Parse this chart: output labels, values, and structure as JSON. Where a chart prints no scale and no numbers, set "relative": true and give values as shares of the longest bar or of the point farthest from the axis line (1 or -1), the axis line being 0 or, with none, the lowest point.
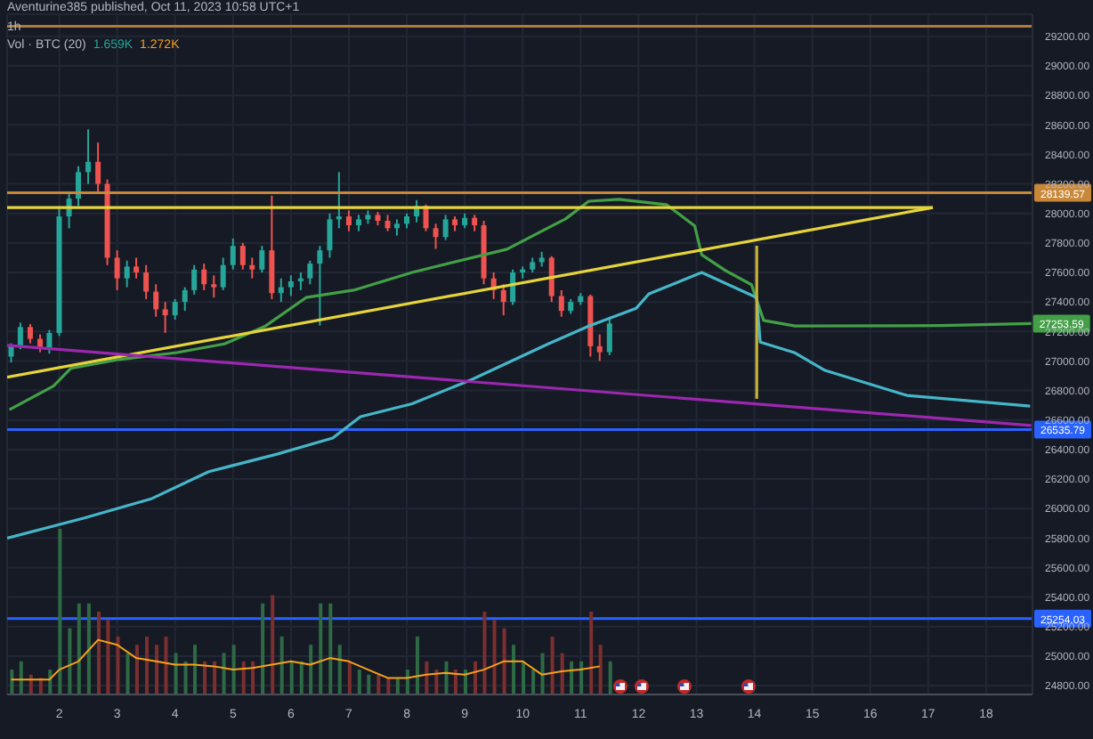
{
  "chart_data": [
    {
      "type": "candlestick",
      "title": "1h",
      "annotations": [
        "Aventurine385 published, Oct 11, 2023 10:58 UTC+1",
        {
          "text": "27253.59",
          "x": 18.78,
          "y": 27253.59
        }
      ],
      "xlim": [
        1.1,
        18.8
      ],
      "xticks": [
        2,
        3,
        4,
        5,
        6,
        7,
        8,
        9,
        10,
        11,
        12,
        13,
        14,
        15,
        16,
        17,
        18
      ],
      "ylim": [
        24740,
        29350
      ],
      "yticks": [
        {
          "value": 24800,
          "label": "24800.00"
        },
        {
          "value": 25000,
          "label": "25000.00"
        },
        {
          "value": 25200,
          "label": "25200.00"
        },
        {
          "value": 25400,
          "label": "25400.00"
        },
        {
          "value": 25600,
          "label": "25600.00"
        },
        {
          "value": 25800,
          "label": "25800.00"
        },
        {
          "value": 26000,
          "label": "26000.00"
        },
        {
          "value": 26200,
          "label": "26200.00"
        },
        {
          "value": 26400,
          "label": "26400.00"
        },
        {
          "value": 26600,
          "label": "26600.00"
        },
        {
          "value": 26800,
          "label": "26800.00"
        },
        {
          "value": 27000,
          "label": "27000.00"
        },
        {
          "value": 27200,
          "label": "27200.00"
        },
        {
          "value": 27400,
          "label": "27400.00"
        },
        {
          "value": 27600,
          "label": "27600.00"
        },
        {
          "value": 27800,
          "label": "27800.00"
        },
        {
          "value": 28000,
          "label": "28000.00"
        },
        {
          "value": 28200,
          "label": "28200.00"
        },
        {
          "value": 28400,
          "label": "28400.00"
        },
        {
          "value": 28600,
          "label": "28600.00"
        },
        {
          "value": 28800,
          "label": "28800.00"
        },
        {
          "value": 29000,
          "label": "29000.00"
        },
        {
          "value": 29200,
          "label": "29200.00"
        }
      ],
      "grid": true,
      "ref_lines": [
        {
          "axis": "y",
          "value": 29268,
          "color": "#b07a3b"
        },
        {
          "axis": "y",
          "value": 28139.57,
          "label": "28139.57",
          "color": "#c8883a"
        },
        {
          "axis": "y",
          "value": 26535.79,
          "label": "26535.79",
          "color": "#2962ff"
        },
        {
          "axis": "y",
          "value": 25254.03,
          "label": "25254.03",
          "color": "#2962ff"
        }
      ],
      "series": [
        {
          "type": "line",
          "color": "#43a047",
          "x": [
            1.14,
            1.9,
            2.2,
            3.03,
            4.03,
            4.85,
            5.56,
            6.26,
            7.08,
            8.09,
            9.73,
            10.44,
            10.74,
            11.14,
            11.66,
            12.48,
            12.97,
            13.09,
            13.5,
            13.95,
            14.16,
            14.7,
            17.24,
            18.78
          ],
          "values": [
            26670,
            26830,
            26950,
            27010,
            27057,
            27116,
            27237,
            27430,
            27480,
            27600,
            27758,
            27903,
            27963,
            28083,
            28096,
            28060,
            27915,
            27720,
            27613,
            27517,
            27275,
            27237,
            27240,
            27253.59
          ]
        },
        {
          "type": "line",
          "color": "#45b6c8",
          "x": [
            1.1,
            2.42,
            3.6,
            4.58,
            5.77,
            6.72,
            7.2,
            8.09,
            9.13,
            10.44,
            11.14,
            11.96,
            12.18,
            13.09,
            14.04,
            14.1,
            14.7,
            15.22,
            16.63,
            18.76
          ],
          "values": [
            25800,
            25935,
            26068,
            26250,
            26370,
            26478,
            26623,
            26710,
            26876,
            27116,
            27237,
            27358,
            27455,
            27600,
            27430,
            27128,
            27055,
            26936,
            26767,
            26694
          ]
        },
        {
          "type": "line",
          "color": "#e6d53a",
          "x": [
            1.1,
            17.08
          ],
          "values": [
            26890,
            28040
          ]
        },
        {
          "type": "line",
          "color": "#e6d53a",
          "x": [
            1.1,
            17.08
          ],
          "values": [
            28040,
            28040
          ]
        },
        {
          "type": "line",
          "color": "#9c27b0",
          "x": [
            1.1,
            18.78
          ],
          "values": [
            27106,
            26563
          ]
        },
        {
          "type": "line",
          "color": "#c9b43a",
          "x": [
            14.04,
            14.04
          ],
          "values": [
            26744,
            27781
          ]
        },
        {
          "type": "candlestick",
          "x": [
            1.17,
            1.33,
            1.5,
            1.67,
            1.83,
            2.0,
            2.17,
            2.33,
            2.5,
            2.67,
            2.83,
            3.0,
            3.17,
            3.33,
            3.5,
            3.67,
            3.83,
            4.0,
            4.17,
            4.33,
            4.5,
            4.67,
            4.83,
            5.0,
            5.17,
            5.33,
            5.5,
            5.67,
            5.83,
            6.0,
            6.17,
            6.33,
            6.5,
            6.67,
            6.83,
            7.0,
            7.17,
            7.33,
            7.5,
            7.67,
            7.83,
            8.0,
            8.17,
            8.33,
            8.5,
            8.67,
            8.83,
            9.0,
            9.17,
            9.33,
            9.5,
            9.67,
            9.83,
            10.0,
            10.17,
            10.33,
            10.5,
            10.67,
            10.83,
            11.0,
            11.17,
            11.33,
            11.5
          ],
          "ohlc": [
            [
              27030,
              27120,
              26990,
              27100
            ],
            [
              27100,
              27260,
              27080,
              27230
            ],
            [
              27230,
              27250,
              27120,
              27150
            ],
            [
              27150,
              27180,
              27060,
              27090
            ],
            [
              27090,
              27210,
              27050,
              27190
            ],
            [
              27190,
              28050,
              27170,
              27980
            ],
            [
              27980,
              28150,
              27900,
              28100
            ],
            [
              28100,
              28320,
              28050,
              28280
            ],
            [
              28280,
              28570,
              28200,
              28350
            ],
            [
              28350,
              28480,
              28150,
              28200
            ],
            [
              28200,
              28230,
              27650,
              27700
            ],
            [
              27700,
              27750,
              27480,
              27560
            ],
            [
              27560,
              27680,
              27500,
              27640
            ],
            [
              27640,
              27700,
              27560,
              27600
            ],
            [
              27600,
              27650,
              27420,
              27470
            ],
            [
              27470,
              27520,
              27300,
              27350
            ],
            [
              27350,
              27400,
              27190,
              27310
            ],
            [
              27310,
              27420,
              27280,
              27400
            ],
            [
              27400,
              27500,
              27340,
              27480
            ],
            [
              27480,
              27650,
              27450,
              27620
            ],
            [
              27620,
              27660,
              27480,
              27520
            ],
            [
              27520,
              27580,
              27430,
              27500
            ],
            [
              27500,
              27700,
              27480,
              27650
            ],
            [
              27650,
              27830,
              27620,
              27780
            ],
            [
              27780,
              27800,
              27620,
              27650
            ],
            [
              27650,
              27700,
              27560,
              27620
            ],
            [
              27620,
              27780,
              27600,
              27750
            ],
            [
              27750,
              28120,
              27420,
              27460
            ],
            [
              27460,
              27560,
              27400,
              27500
            ],
            [
              27500,
              27580,
              27440,
              27540
            ],
            [
              27540,
              27600,
              27480,
              27560
            ],
            [
              27560,
              27680,
              27520,
              27660
            ],
            [
              27660,
              27780,
              27240,
              27750
            ],
            [
              27750,
              28000,
              27700,
              27960
            ],
            [
              27960,
              28280,
              27900,
              27980
            ],
            [
              27980,
              28020,
              27880,
              27920
            ],
            [
              27920,
              27990,
              27880,
              27960
            ],
            [
              27960,
              28020,
              27930,
              27990
            ],
            [
              27990,
              28010,
              27920,
              27950
            ],
            [
              27950,
              27990,
              27880,
              27900
            ],
            [
              27900,
              27960,
              27850,
              27930
            ],
            [
              27930,
              28000,
              27900,
              27980
            ],
            [
              27980,
              28090,
              27940,
              28050
            ],
            [
              28050,
              28060,
              27880,
              27900
            ],
            [
              27900,
              27930,
              27760,
              27840
            ],
            [
              27840,
              27990,
              27820,
              27960
            ],
            [
              27960,
              27980,
              27880,
              27920
            ],
            [
              27920,
              28000,
              27900,
              27970
            ],
            [
              27970,
              27990,
              27880,
              27920
            ],
            [
              27920,
              27950,
              27520,
              27560
            ],
            [
              27560,
              27600,
              27420,
              27480
            ],
            [
              27480,
              27520,
              27310,
              27400
            ],
            [
              27400,
              27620,
              27380,
              27600
            ],
            [
              27600,
              27640,
              27560,
              27620
            ],
            [
              27620,
              27700,
              27600,
              27670
            ],
            [
              27670,
              27740,
              27640,
              27700
            ],
            [
              27700,
              27710,
              27400,
              27440
            ],
            [
              27440,
              27480,
              27300,
              27340
            ],
            [
              27340,
              27420,
              27320,
              27400
            ],
            [
              27400,
              27460,
              27380,
              27440
            ],
            [
              27440,
              27450,
              27030,
              27100
            ],
            [
              27100,
              27180,
              27000,
              27060
            ],
            [
              27060,
              27300,
              27040,
              27254
            ]
          ],
          "colors": [
            "#26a69a",
            "#26a69a",
            "#ef5350",
            "#ef5350",
            "#26a69a",
            "#26a69a",
            "#26a69a",
            "#26a69a",
            "#26a69a",
            "#ef5350",
            "#ef5350",
            "#ef5350",
            "#26a69a",
            "#ef5350",
            "#ef5350",
            "#ef5350",
            "#ef5350",
            "#26a69a",
            "#26a69a",
            "#26a69a",
            "#ef5350",
            "#ef5350",
            "#26a69a",
            "#26a69a",
            "#ef5350",
            "#ef5350",
            "#26a69a",
            "#ef5350",
            "#26a69a",
            "#26a69a",
            "#26a69a",
            "#26a69a",
            "#26a69a",
            "#26a69a",
            "#26a69a",
            "#ef5350",
            "#26a69a",
            "#26a69a",
            "#ef5350",
            "#ef5350",
            "#26a69a",
            "#26a69a",
            "#26a69a",
            "#ef5350",
            "#ef5350",
            "#26a69a",
            "#ef5350",
            "#26a69a",
            "#ef5350",
            "#ef5350",
            "#ef5350",
            "#ef5350",
            "#26a69a",
            "#26a69a",
            "#26a69a",
            "#26a69a",
            "#ef5350",
            "#ef5350",
            "#26a69a",
            "#26a69a",
            "#ef5350",
            "#ef5350",
            "#26a69a"
          ]
        }
      ]
    },
    {
      "type": "bar",
      "title": "Vol · BTC (20)",
      "annotations": [
        "1.659K",
        "1.272K"
      ],
      "relative": true,
      "xlim": [
        1.1,
        18.8
      ],
      "series": [
        {
          "type": "bar",
          "x": [
            1.17,
            1.33,
            1.5,
            1.67,
            1.83,
            2.0,
            2.17,
            2.33,
            2.5,
            2.67,
            2.83,
            3.0,
            3.17,
            3.33,
            3.5,
            3.67,
            3.83,
            4.0,
            4.17,
            4.33,
            4.5,
            4.67,
            4.83,
            5.0,
            5.17,
            5.33,
            5.5,
            5.67,
            5.83,
            6.0,
            6.17,
            6.33,
            6.5,
            6.67,
            6.83,
            7.0,
            7.17,
            7.33,
            7.5,
            7.67,
            7.83,
            8.0,
            8.17,
            8.33,
            8.5,
            8.67,
            8.83,
            9.0,
            9.17,
            9.33,
            9.5,
            9.67,
            9.83,
            10.0,
            10.17,
            10.33,
            10.5,
            10.67,
            10.83,
            11.0,
            11.17,
            11.33,
            11.5
          ],
          "values": [
            0.15,
            0.2,
            0.12,
            0.1,
            0.15,
            1.0,
            0.4,
            0.55,
            0.55,
            0.5,
            0.45,
            0.35,
            0.25,
            0.3,
            0.35,
            0.3,
            0.35,
            0.25,
            0.2,
            0.3,
            0.2,
            0.2,
            0.25,
            0.3,
            0.2,
            0.2,
            0.55,
            0.6,
            0.35,
            0.2,
            0.2,
            0.3,
            0.55,
            0.55,
            0.3,
            0.2,
            0.15,
            0.12,
            0.12,
            0.1,
            0.1,
            0.15,
            0.35,
            0.2,
            0.15,
            0.2,
            0.15,
            0.15,
            0.2,
            0.5,
            0.45,
            0.4,
            0.3,
            0.2,
            0.15,
            0.25,
            0.35,
            0.25,
            0.2,
            0.2,
            0.5,
            0.3,
            0.2
          ],
          "colors": [
            "#2e6b45",
            "#2e6b45",
            "#7c2f2f",
            "#7c2f2f",
            "#2e6b45",
            "#2e6b45",
            "#2e6b45",
            "#2e6b45",
            "#2e6b45",
            "#7c2f2f",
            "#7c2f2f",
            "#7c2f2f",
            "#2e6b45",
            "#7c2f2f",
            "#7c2f2f",
            "#7c2f2f",
            "#7c2f2f",
            "#2e6b45",
            "#2e6b45",
            "#2e6b45",
            "#7c2f2f",
            "#7c2f2f",
            "#2e6b45",
            "#2e6b45",
            "#7c2f2f",
            "#7c2f2f",
            "#2e6b45",
            "#7c2f2f",
            "#2e6b45",
            "#2e6b45",
            "#2e6b45",
            "#2e6b45",
            "#2e6b45",
            "#2e6b45",
            "#2e6b45",
            "#7c2f2f",
            "#2e6b45",
            "#2e6b45",
            "#7c2f2f",
            "#7c2f2f",
            "#2e6b45",
            "#2e6b45",
            "#2e6b45",
            "#7c2f2f",
            "#7c2f2f",
            "#2e6b45",
            "#7c2f2f",
            "#2e6b45",
            "#7c2f2f",
            "#7c2f2f",
            "#7c2f2f",
            "#7c2f2f",
            "#2e6b45",
            "#2e6b45",
            "#2e6b45",
            "#2e6b45",
            "#7c2f2f",
            "#7c2f2f",
            "#2e6b45",
            "#2e6b45",
            "#7c2f2f",
            "#7c2f2f",
            "#2e6b45"
          ]
        },
        {
          "type": "line",
          "color": "#f7a21b",
          "x": [
            1.17,
            1.5,
            1.83,
            2.0,
            2.33,
            2.67,
            3.0,
            3.33,
            3.67,
            4.0,
            4.33,
            4.67,
            5.0,
            5.33,
            5.67,
            6.0,
            6.33,
            6.67,
            7.0,
            7.33,
            7.67,
            8.0,
            8.33,
            8.67,
            9.0,
            9.33,
            9.67,
            10.0,
            10.33,
            10.67,
            11.0,
            11.33
          ],
          "values": [
            0.09,
            0.09,
            0.09,
            0.15,
            0.2,
            0.33,
            0.3,
            0.22,
            0.2,
            0.18,
            0.18,
            0.17,
            0.15,
            0.16,
            0.18,
            0.2,
            0.18,
            0.22,
            0.2,
            0.15,
            0.1,
            0.1,
            0.12,
            0.13,
            0.12,
            0.15,
            0.2,
            0.2,
            0.12,
            0.14,
            0.15,
            0.17
          ]
        }
      ]
    }
  ]
}
